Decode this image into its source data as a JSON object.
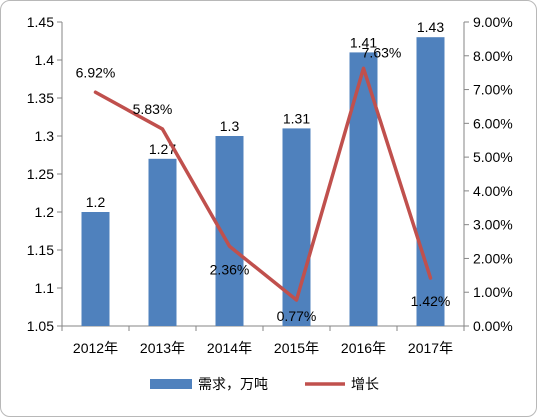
{
  "chart_data": {
    "type": "bar",
    "combo": "bar-line-dual-axis",
    "categories": [
      "2012年",
      "2013年",
      "2014年",
      "2015年",
      "2016年",
      "2017年"
    ],
    "series": [
      {
        "name": "需求，万吨",
        "type": "bar",
        "axis": "left",
        "values": [
          1.2,
          1.27,
          1.3,
          1.31,
          1.41,
          1.43
        ],
        "labels": [
          "1.2",
          "1.27",
          "1.3",
          "1.31",
          "1.41",
          "1.43"
        ],
        "color": "#4f81bd"
      },
      {
        "name": "增长",
        "type": "line",
        "axis": "right",
        "values": [
          6.92,
          5.83,
          2.36,
          0.77,
          7.63,
          1.42
        ],
        "labels": [
          "6.92%",
          "5.83%",
          "2.36%",
          "0.77%",
          "7.63%",
          "1.42%"
        ],
        "color": "#c0504d"
      }
    ],
    "y_left": {
      "range": [
        1.05,
        1.45
      ],
      "ticks": [
        1.05,
        1.1,
        1.15,
        1.2,
        1.25,
        1.3,
        1.35,
        1.4,
        1.45
      ],
      "tick_labels": [
        "1.05",
        "1.1",
        "1.15",
        "1.2",
        "1.25",
        "1.3",
        "1.35",
        "1.4",
        "1.45"
      ]
    },
    "y_right": {
      "range": [
        0,
        9
      ],
      "ticks": [
        0,
        1,
        2,
        3,
        4,
        5,
        6,
        7,
        8,
        9
      ],
      "tick_labels": [
        "0.00%",
        "1.00%",
        "2.00%",
        "3.00%",
        "4.00%",
        "5.00%",
        "6.00%",
        "7.00%",
        "8.00%",
        "9.00%"
      ]
    },
    "grid": false,
    "legend": {
      "position": "bottom",
      "items": [
        {
          "label": "需求，万吨",
          "symbol": "bar",
          "color": "#4f81bd"
        },
        {
          "label": "增长",
          "symbol": "line",
          "color": "#c0504d"
        }
      ]
    }
  }
}
